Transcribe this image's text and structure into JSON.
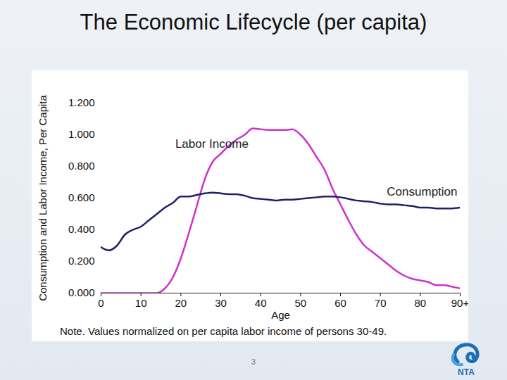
{
  "chart_data": {
    "type": "line",
    "title": "The Economic Lifecycle (per capita)",
    "x_label": "Age",
    "y_label": "Consumption and Labor Income, Per Capita",
    "note": "Note. Values normalized on per capita labor income of persons 30-49.",
    "page_number": "3",
    "logo": "NTA",
    "x": [
      0,
      2,
      4,
      6,
      8,
      10,
      12,
      14,
      16,
      18,
      20,
      22,
      24,
      26,
      28,
      30,
      32,
      34,
      36,
      38,
      40,
      42,
      44,
      46,
      48,
      50,
      52,
      54,
      56,
      58,
      60,
      62,
      64,
      66,
      68,
      70,
      72,
      74,
      76,
      78,
      80,
      82,
      84,
      86,
      88,
      90
    ],
    "series": [
      {
        "name": "Labor Income",
        "color": "#cc33cc",
        "values": [
          0,
          0,
          0,
          0,
          0,
          0,
          0,
          0,
          0.03,
          0.1,
          0.22,
          0.38,
          0.55,
          0.72,
          0.83,
          0.88,
          0.93,
          0.97,
          1.0,
          1.04,
          1.035,
          1.03,
          1.03,
          1.03,
          1.035,
          1.0,
          0.94,
          0.86,
          0.78,
          0.66,
          0.56,
          0.46,
          0.37,
          0.3,
          0.26,
          0.22,
          0.18,
          0.14,
          0.11,
          0.09,
          0.08,
          0.07,
          0.05,
          0.05,
          0.04,
          0.03
        ]
      },
      {
        "name": "Consumption",
        "color": "#1f1f6b",
        "values": [
          0.29,
          0.27,
          0.3,
          0.37,
          0.4,
          0.42,
          0.46,
          0.5,
          0.54,
          0.57,
          0.61,
          0.61,
          0.62,
          0.63,
          0.635,
          0.63,
          0.625,
          0.625,
          0.615,
          0.6,
          0.595,
          0.59,
          0.585,
          0.59,
          0.59,
          0.595,
          0.6,
          0.605,
          0.61,
          0.61,
          0.605,
          0.595,
          0.585,
          0.58,
          0.575,
          0.565,
          0.56,
          0.56,
          0.555,
          0.55,
          0.54,
          0.54,
          0.535,
          0.535,
          0.535,
          0.54
        ]
      }
    ],
    "xlim": [
      0,
      90
    ],
    "xticks": [
      0,
      10,
      20,
      30,
      40,
      50,
      60,
      70,
      80,
      {
        "value": 90,
        "label": "90+"
      }
    ],
    "ylim": [
      0,
      1.2
    ],
    "yticks": [
      {
        "value": 0,
        "label": "0.000"
      },
      {
        "value": 0.2,
        "label": "0.200"
      },
      {
        "value": 0.4,
        "label": "0.400"
      },
      {
        "value": 0.6,
        "label": "0.600"
      },
      {
        "value": 0.8,
        "label": "0.800"
      },
      {
        "value": 1.0,
        "label": "1.000"
      },
      {
        "value": 1.2,
        "label": "1.200"
      }
    ],
    "grid": false
  }
}
